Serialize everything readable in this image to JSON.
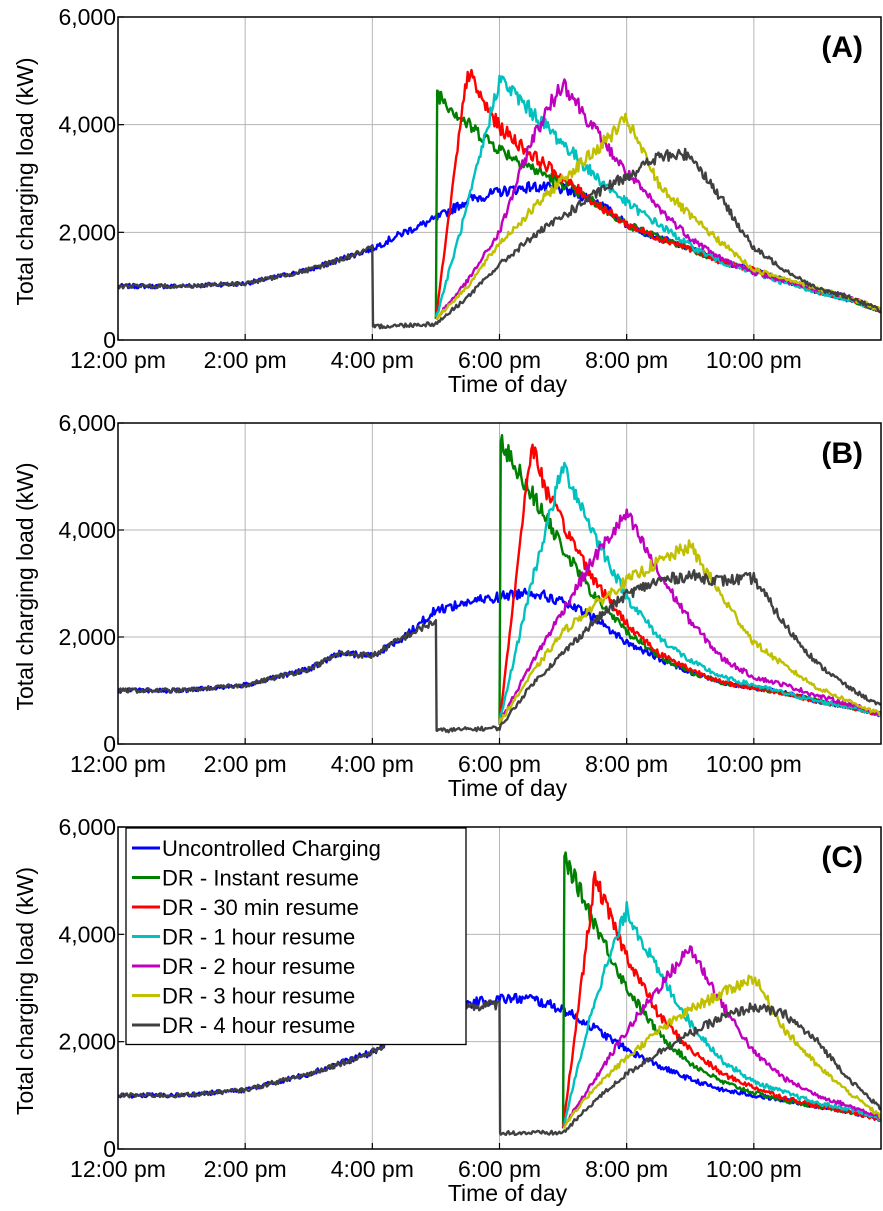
{
  "chart_data": [
    {
      "type": "line",
      "panel": "(A)",
      "xlabel": "Time of day",
      "ylabel": "Total charging load (kW)",
      "xlim": [
        12,
        24
      ],
      "ylim": [
        0,
        6000
      ],
      "grid": true,
      "xticks": [
        12,
        14,
        16,
        18,
        20,
        22
      ],
      "xtick_labels": [
        "12:00 pm",
        "2:00 pm",
        "4:00 pm",
        "6:00 pm",
        "8:00 pm",
        "10:00 pm"
      ],
      "yticks": [
        0,
        2000,
        4000,
        6000
      ],
      "ytick_labels": [
        "0",
        "2,000",
        "4,000",
        "6,000"
      ],
      "dr_start_hour": 16,
      "dr_end_hour": 17,
      "series": [
        {
          "name": "Uncontrolled Charging",
          "color": "#0000ff",
          "x": [
            12,
            13,
            14,
            15,
            15.5,
            16,
            16.5,
            17,
            17.5,
            18,
            18.5,
            19,
            19.5,
            20,
            20.5,
            21,
            21.5,
            22,
            22.5,
            23,
            23.5,
            24
          ],
          "values": [
            1000,
            1000,
            1050,
            1300,
            1500,
            1700,
            2000,
            2250,
            2600,
            2750,
            2850,
            2800,
            2600,
            2150,
            1900,
            1700,
            1450,
            1300,
            1100,
            900,
            750,
            550
          ]
        },
        {
          "name": "DR - Instant resume",
          "color": "#008000",
          "x": [
            17,
            17.02,
            17.5,
            18,
            18.5,
            19,
            19.5,
            20,
            20.5,
            21,
            21.5,
            22,
            22.5,
            23,
            23.5,
            24
          ],
          "values": [
            400,
            4600,
            4000,
            3550,
            3200,
            2900,
            2550,
            2150,
            1900,
            1700,
            1450,
            1300,
            1100,
            900,
            750,
            550
          ]
        },
        {
          "name": "DR - 30 min resume",
          "color": "#ff0000",
          "x": [
            17,
            17.5,
            17.75,
            18,
            18.5,
            19,
            19.5,
            20,
            20.5,
            21,
            21.5,
            22,
            22.5,
            23,
            23.5,
            24
          ],
          "values": [
            400,
            5000,
            4400,
            3950,
            3450,
            3000,
            2550,
            2150,
            1900,
            1700,
            1450,
            1300,
            1100,
            900,
            750,
            550
          ]
        },
        {
          "name": "DR - 1 hour resume",
          "color": "#00c0c0",
          "x": [
            17,
            17.5,
            18,
            18.5,
            19,
            19.5,
            20,
            20.5,
            21,
            21.5,
            22,
            22.5,
            23,
            23.5,
            24
          ],
          "values": [
            400,
            2500,
            4850,
            4250,
            3650,
            3050,
            2550,
            2150,
            1750,
            1450,
            1250,
            1050,
            900,
            750,
            550
          ]
        },
        {
          "name": "DR - 2 hour resume",
          "color": "#bf00bf",
          "x": [
            17,
            17.5,
            18,
            18.5,
            19,
            19.5,
            20,
            20.5,
            21,
            21.5,
            22,
            22.5,
            23,
            23.5,
            24
          ],
          "values": [
            400,
            1100,
            2000,
            3700,
            4800,
            3900,
            3100,
            2450,
            1900,
            1500,
            1250,
            1100,
            950,
            800,
            550
          ]
        },
        {
          "name": "DR - 3 hour resume",
          "color": "#c0c000",
          "x": [
            17,
            17.5,
            18,
            18.5,
            19,
            19.5,
            20,
            20.5,
            21,
            21.5,
            22,
            22.5,
            23,
            23.5,
            24
          ],
          "values": [
            400,
            1000,
            1800,
            2400,
            3000,
            3500,
            4100,
            2900,
            2300,
            1800,
            1300,
            1150,
            950,
            800,
            550
          ]
        },
        {
          "name": "DR - 4 hour resume",
          "color": "#404040",
          "x": [
            12,
            13,
            14,
            15,
            15.5,
            16,
            16.01,
            17,
            17.5,
            18,
            18.5,
            19,
            19.5,
            20,
            20.5,
            21,
            21.5,
            22,
            22.5,
            23,
            23.5,
            24
          ],
          "values": [
            1000,
            1000,
            1050,
            1300,
            1500,
            1700,
            250,
            300,
            800,
            1400,
            1900,
            2300,
            2700,
            3050,
            3400,
            3450,
            2600,
            1700,
            1300,
            950,
            800,
            550
          ]
        }
      ]
    },
    {
      "type": "line",
      "panel": "(B)",
      "xlabel": "Time of day",
      "ylabel": "Total charging load (kW)",
      "xlim": [
        12,
        24
      ],
      "ylim": [
        0,
        6000
      ],
      "grid": true,
      "xticks": [
        12,
        14,
        16,
        18,
        20,
        22
      ],
      "xtick_labels": [
        "12:00 pm",
        "2:00 pm",
        "4:00 pm",
        "6:00 pm",
        "8:00 pm",
        "10:00 pm"
      ],
      "yticks": [
        0,
        2000,
        4000,
        6000
      ],
      "ytick_labels": [
        "0",
        "2,000",
        "4,000",
        "6,000"
      ],
      "dr_start_hour": 17,
      "dr_end_hour": 18,
      "series": [
        {
          "name": "Uncontrolled Charging",
          "color": "#0000ff",
          "x": [
            12,
            13,
            14,
            15,
            15.5,
            16,
            16.5,
            17,
            17.5,
            18,
            18.5,
            19,
            19.5,
            20,
            20.5,
            21,
            21.5,
            22,
            22.5,
            23,
            23.5,
            24
          ],
          "values": [
            1000,
            1000,
            1100,
            1400,
            1700,
            1650,
            2000,
            2500,
            2650,
            2750,
            2850,
            2650,
            2350,
            1900,
            1600,
            1350,
            1150,
            1050,
            950,
            800,
            700,
            550
          ]
        },
        {
          "name": "DR - Instant resume",
          "color": "#008000",
          "x": [
            18,
            18.02,
            18.5,
            19,
            19.5,
            20,
            20.5,
            21,
            21.5,
            22,
            22.5,
            23,
            23.5,
            24
          ],
          "values": [
            400,
            5650,
            4700,
            3650,
            2750,
            2100,
            1650,
            1350,
            1150,
            1050,
            950,
            800,
            700,
            550
          ]
        },
        {
          "name": "DR - 30 min resume",
          "color": "#ff0000",
          "x": [
            18,
            18.5,
            18.75,
            19,
            19.5,
            20,
            20.5,
            21,
            21.5,
            22,
            22.5,
            23,
            23.5,
            24
          ],
          "values": [
            400,
            5600,
            4700,
            4100,
            3050,
            2250,
            1700,
            1400,
            1150,
            1050,
            950,
            800,
            700,
            550
          ]
        },
        {
          "name": "DR - 1 hour resume",
          "color": "#00c0c0",
          "x": [
            18,
            18.5,
            19,
            19.5,
            20,
            20.5,
            21,
            21.5,
            22,
            22.5,
            23,
            23.5,
            24
          ],
          "values": [
            400,
            3000,
            5200,
            3900,
            2750,
            2000,
            1550,
            1250,
            1100,
            950,
            800,
            700,
            550
          ]
        },
        {
          "name": "DR - 2 hour resume",
          "color": "#bf00bf",
          "x": [
            18,
            18.5,
            19,
            19.5,
            20,
            20.5,
            21,
            21.5,
            22,
            22.5,
            23,
            23.5,
            24
          ],
          "values": [
            400,
            1500,
            2500,
            3500,
            4300,
            3200,
            2300,
            1600,
            1250,
            1100,
            900,
            750,
            550
          ]
        },
        {
          "name": "DR - 3 hour resume",
          "color": "#c0c000",
          "x": [
            18,
            18.5,
            19,
            19.5,
            20,
            20.5,
            21,
            21.5,
            22,
            22.5,
            23,
            23.5,
            24
          ],
          "values": [
            400,
            1300,
            2100,
            2600,
            3050,
            3400,
            3700,
            2750,
            1900,
            1450,
            1050,
            800,
            550
          ]
        },
        {
          "name": "DR - 4 hour resume",
          "color": "#404040",
          "x": [
            12,
            13,
            14,
            15,
            15.5,
            16,
            16.5,
            17,
            17.01,
            18,
            18.5,
            19,
            19.5,
            20,
            20.5,
            21,
            21.5,
            22,
            22.5,
            23,
            23.5,
            24
          ],
          "values": [
            1000,
            1000,
            1100,
            1400,
            1700,
            1650,
            2000,
            2300,
            250,
            300,
            1100,
            1700,
            2300,
            2800,
            3050,
            3150,
            3050,
            3100,
            2200,
            1500,
            1050,
            700
          ]
        }
      ]
    },
    {
      "type": "line",
      "panel": "(C)",
      "xlabel": "Time of day",
      "ylabel": "Total charging load (kW)",
      "xlim": [
        12,
        24
      ],
      "ylim": [
        0,
        6000
      ],
      "grid": true,
      "legend": "top-left",
      "xticks": [
        12,
        14,
        16,
        18,
        20,
        22
      ],
      "xtick_labels": [
        "12:00 pm",
        "2:00 pm",
        "4:00 pm",
        "6:00 pm",
        "8:00 pm",
        "10:00 pm"
      ],
      "yticks": [
        0,
        2000,
        4000,
        6000
      ],
      "ytick_labels": [
        "0",
        "2,000",
        "4,000",
        "6,000"
      ],
      "dr_start_hour": 18,
      "dr_end_hour": 19,
      "series": [
        {
          "name": "Uncontrolled Charging",
          "color": "#0000ff",
          "x": [
            12,
            13,
            14,
            15,
            16,
            16.5,
            17,
            17.5,
            18,
            18.5,
            19,
            19.5,
            20,
            20.5,
            21,
            21.5,
            22,
            22.5,
            23,
            23.5,
            24
          ],
          "values": [
            1000,
            1000,
            1100,
            1400,
            1800,
            2200,
            2500,
            2700,
            2800,
            2800,
            2600,
            2250,
            1850,
            1550,
            1300,
            1100,
            1000,
            900,
            800,
            700,
            550
          ]
        },
        {
          "name": "DR - Instant resume",
          "color": "#008000",
          "x": [
            19,
            19.02,
            19.5,
            20,
            20.5,
            21,
            21.5,
            22,
            22.5,
            23,
            23.5,
            24
          ],
          "values": [
            400,
            5450,
            4200,
            3000,
            2150,
            1600,
            1250,
            1050,
            900,
            800,
            700,
            550
          ]
        },
        {
          "name": "DR - 30 min resume",
          "color": "#ff0000",
          "x": [
            19,
            19.5,
            19.75,
            20,
            20.5,
            21,
            21.5,
            22,
            22.5,
            23,
            23.5,
            24
          ],
          "values": [
            400,
            5050,
            4300,
            3600,
            2500,
            1850,
            1400,
            1150,
            950,
            800,
            700,
            550
          ]
        },
        {
          "name": "DR - 1 hour resume",
          "color": "#00c0c0",
          "x": [
            19,
            19.5,
            20,
            20.5,
            21,
            21.5,
            22,
            22.5,
            23,
            23.5,
            24
          ],
          "values": [
            400,
            2800,
            4450,
            3300,
            2350,
            1650,
            1250,
            1050,
            850,
            750,
            550
          ]
        },
        {
          "name": "DR - 2 hour resume",
          "color": "#bf00bf",
          "x": [
            19,
            19.5,
            20,
            20.5,
            21,
            21.5,
            22,
            22.5,
            23,
            23.5,
            24
          ],
          "values": [
            400,
            1300,
            2200,
            3000,
            3750,
            2700,
            1800,
            1300,
            1000,
            800,
            600
          ]
        },
        {
          "name": "DR - 3 hour resume",
          "color": "#c0c000",
          "x": [
            19,
            19.5,
            20,
            20.5,
            21,
            21.5,
            22,
            22.5,
            23,
            23.5,
            24
          ],
          "values": [
            400,
            1150,
            1700,
            2200,
            2600,
            2900,
            3200,
            2200,
            1550,
            1050,
            600
          ]
        },
        {
          "name": "DR - 4 hour resume",
          "color": "#404040",
          "x": [
            12,
            13,
            14,
            15,
            16,
            16.5,
            17,
            17.5,
            18,
            18.01,
            19,
            19.5,
            20,
            20.5,
            21,
            21.5,
            22,
            22.5,
            23,
            23.5,
            24
          ],
          "values": [
            1000,
            1000,
            1100,
            1400,
            1800,
            2200,
            2500,
            2650,
            2700,
            300,
            300,
            900,
            1400,
            1800,
            2150,
            2450,
            2650,
            2500,
            2000,
            1300,
            750
          ]
        }
      ]
    }
  ]
}
